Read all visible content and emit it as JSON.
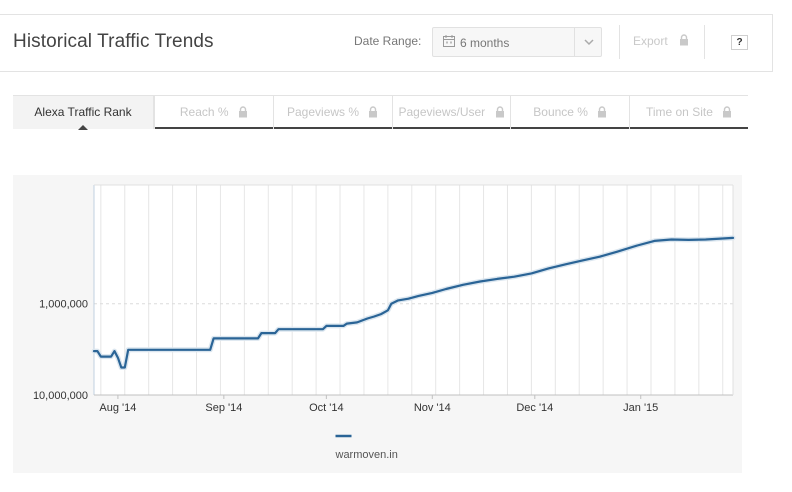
{
  "header": {
    "title": "Historical Traffic Trends",
    "date_range_label": "Date Range:",
    "date_range_value": "6 months",
    "export_label": "Export",
    "help_label": "?",
    "icons": {
      "calendar": "calendar-icon",
      "chevron": "chevron-down-icon",
      "lock": "lock-icon"
    }
  },
  "tabs": [
    {
      "label": "Alexa Traffic Rank",
      "locked": false,
      "active": true
    },
    {
      "label": "Reach %",
      "locked": true,
      "active": false
    },
    {
      "label": "Pageviews %",
      "locked": true,
      "active": false
    },
    {
      "label": "Pageviews/User",
      "locked": true,
      "active": false
    },
    {
      "label": "Bounce %",
      "locked": true,
      "active": false
    },
    {
      "label": "Time on Site",
      "locked": true,
      "active": false
    }
  ],
  "chart_data": {
    "type": "line",
    "y_scale": "log",
    "y_reversed": true,
    "ylim": [
      10000000,
      50000
    ],
    "xlim": [
      "2014-07-25",
      "2015-01-28"
    ],
    "y_ticks": [
      {
        "value": 1000000,
        "label": "1,000,000"
      },
      {
        "value": 10000000,
        "label": "10,000,000"
      }
    ],
    "x_ticks": [
      {
        "date": "2014-08-01",
        "label": "Aug '14"
      },
      {
        "date": "2014-09-01",
        "label": "Sep '14"
      },
      {
        "date": "2014-10-01",
        "label": "Oct '14"
      },
      {
        "date": "2014-11-01",
        "label": "Nov '14"
      },
      {
        "date": "2014-12-01",
        "label": "Dec '14"
      },
      {
        "date": "2015-01-01",
        "label": "Jan '15"
      }
    ],
    "grid": {
      "vertical": true,
      "horizontal_dashed": true
    },
    "legend_position": "bottom-center",
    "series": [
      {
        "name": "warmoven.in",
        "color": "#2a6496",
        "points": [
          [
            "2014-07-25",
            3300000
          ],
          [
            "2014-07-26",
            3300000
          ],
          [
            "2014-07-27",
            3800000
          ],
          [
            "2014-07-30",
            3800000
          ],
          [
            "2014-07-31",
            3300000
          ],
          [
            "2014-08-01",
            3900000
          ],
          [
            "2014-08-02",
            5000000
          ],
          [
            "2014-08-03",
            5000000
          ],
          [
            "2014-08-04",
            3200000
          ],
          [
            "2014-08-28",
            3200000
          ],
          [
            "2014-08-29",
            2400000
          ],
          [
            "2014-09-11",
            2400000
          ],
          [
            "2014-09-12",
            2100000
          ],
          [
            "2014-09-16",
            2100000
          ],
          [
            "2014-09-17",
            1900000
          ],
          [
            "2014-09-30",
            1900000
          ],
          [
            "2014-10-01",
            1750000
          ],
          [
            "2014-10-06",
            1750000
          ],
          [
            "2014-10-07",
            1650000
          ],
          [
            "2014-10-10",
            1600000
          ],
          [
            "2014-10-13",
            1450000
          ],
          [
            "2014-10-15",
            1380000
          ],
          [
            "2014-10-17",
            1300000
          ],
          [
            "2014-10-19",
            1180000
          ],
          [
            "2014-10-20",
            1000000
          ],
          [
            "2014-10-22",
            920000
          ],
          [
            "2014-10-25",
            880000
          ],
          [
            "2014-10-28",
            820000
          ],
          [
            "2014-11-01",
            760000
          ],
          [
            "2014-11-05",
            690000
          ],
          [
            "2014-11-10",
            620000
          ],
          [
            "2014-11-15",
            570000
          ],
          [
            "2014-11-20",
            535000
          ],
          [
            "2014-11-25",
            505000
          ],
          [
            "2014-11-30",
            465000
          ],
          [
            "2014-12-05",
            410000
          ],
          [
            "2014-12-10",
            370000
          ],
          [
            "2014-12-15",
            335000
          ],
          [
            "2014-12-20",
            305000
          ],
          [
            "2014-12-25",
            270000
          ],
          [
            "2014-12-31",
            230000
          ],
          [
            "2015-01-05",
            205000
          ],
          [
            "2015-01-10",
            198000
          ],
          [
            "2015-01-15",
            200000
          ],
          [
            "2015-01-20",
            198000
          ],
          [
            "2015-01-25",
            193000
          ],
          [
            "2015-01-28",
            190000
          ]
        ]
      }
    ]
  }
}
